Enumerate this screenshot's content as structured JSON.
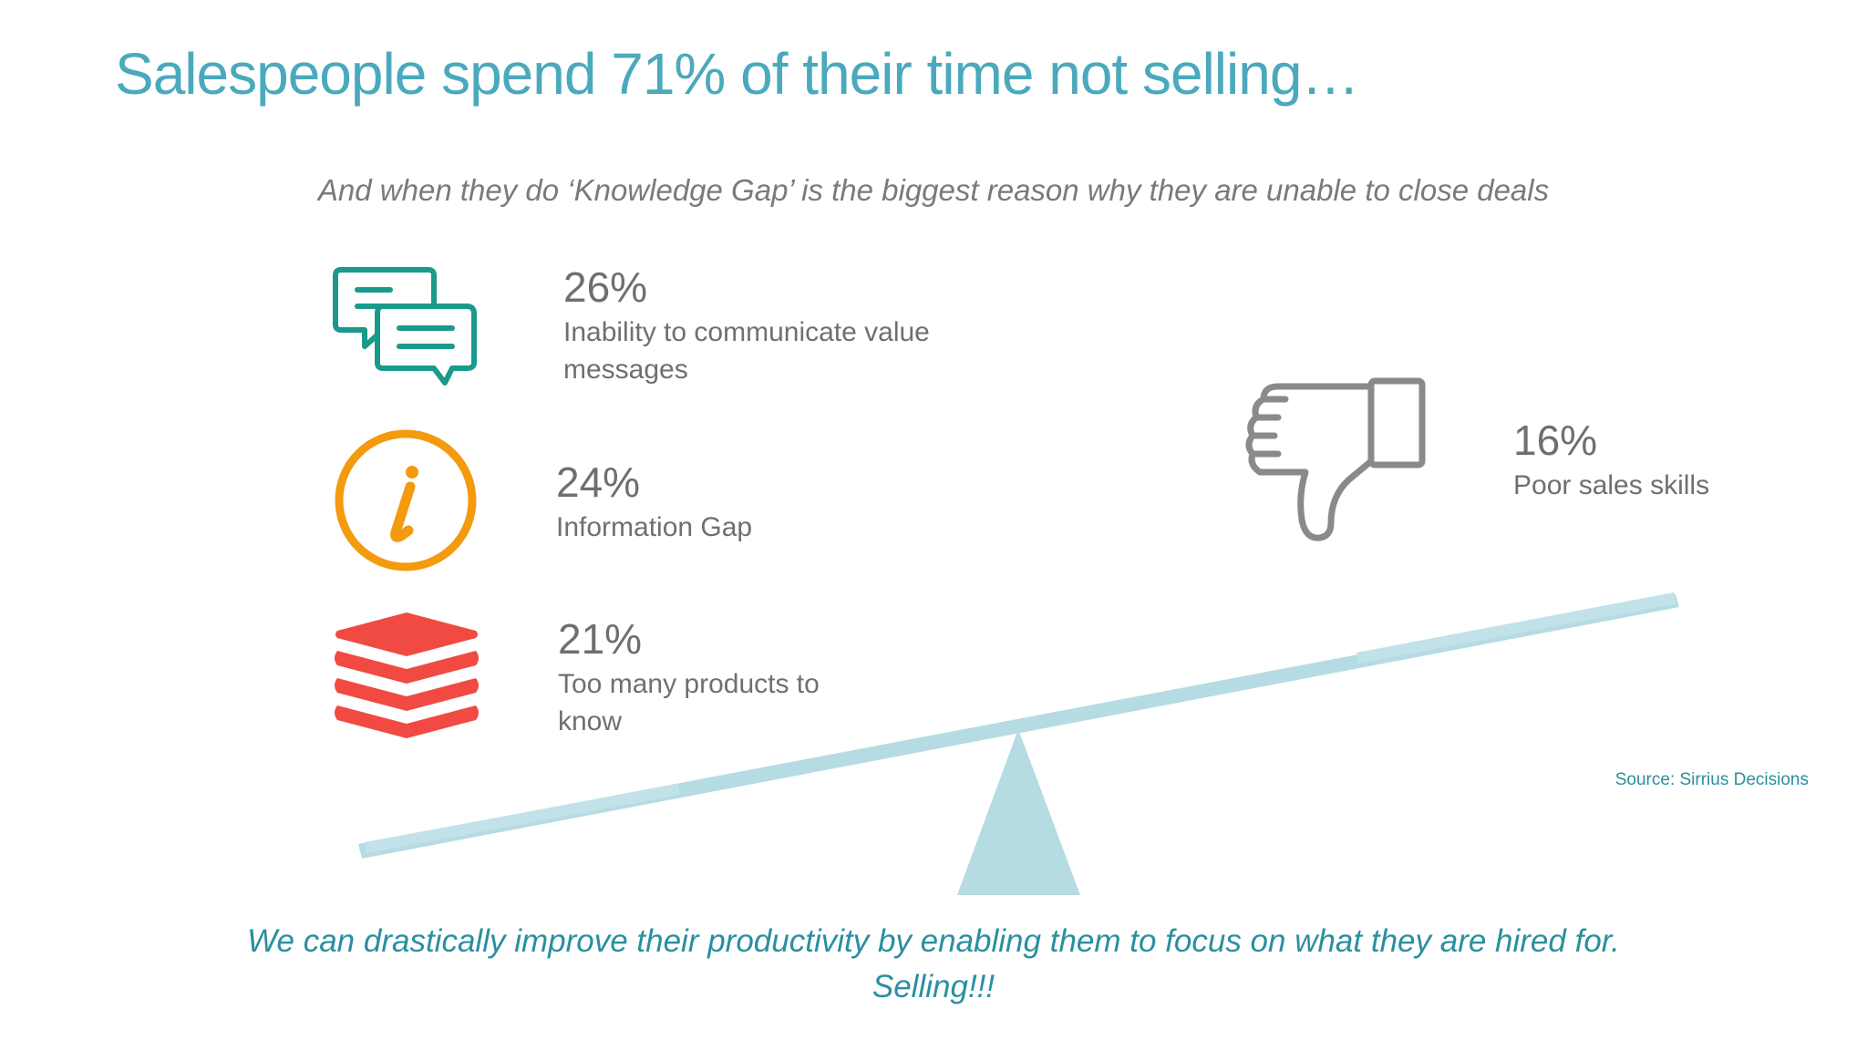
{
  "slide": {
    "title": "Salespeople spend 71% of their time not selling…",
    "subtitle": "And when they do ‘Knowledge Gap’ is the biggest reason why they are unable to close deals",
    "source": "Source: Sirrius Decisions",
    "tagline_line1": "We can drastically improve their productivity by enabling them to focus on what they are hired for.",
    "tagline_line2": "Selling!!!"
  },
  "stats": [
    {
      "percent": "26%",
      "label": "Inability to communicate value messages",
      "icon": "chat-bubbles-icon",
      "color": "#1a9a8a"
    },
    {
      "percent": "24%",
      "label": "Information Gap",
      "icon": "info-icon",
      "color": "#f49a0e"
    },
    {
      "percent": "21%",
      "label": "Too many products to know",
      "icon": "stacked-layers-icon",
      "color": "#f04a42"
    },
    {
      "percent": "16%",
      "label": "Poor sales skills",
      "icon": "thumbs-down-icon",
      "color": "#8a8a8a"
    }
  ],
  "colors": {
    "title": "#4aa9bd",
    "subtitle": "#7a7a7a",
    "stat_text": "#6f6f6f",
    "seesaw": "#b5dce2",
    "tagline": "#2a8fa0"
  }
}
